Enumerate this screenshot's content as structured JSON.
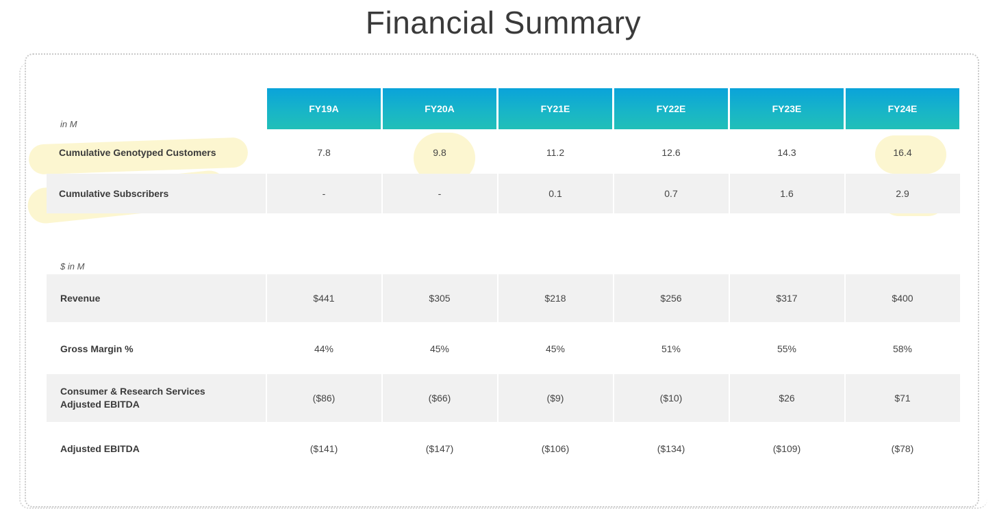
{
  "title": "Financial Summary",
  "section1": {
    "unit": "in M",
    "columns": [
      "FY19A",
      "FY20A",
      "FY21E",
      "FY22E",
      "FY23E",
      "FY24E"
    ],
    "rows": [
      {
        "label": "Cumulative Genotyped Customers",
        "values": [
          "7.8",
          "9.8",
          "11.2",
          "12.6",
          "14.3",
          "16.4"
        ]
      },
      {
        "label": "Cumulative Subscribers",
        "values": [
          "-",
          "-",
          "0.1",
          "0.7",
          "1.6",
          "2.9"
        ]
      }
    ]
  },
  "section2": {
    "unit": "$ in M",
    "rows": [
      {
        "label": "Revenue",
        "values": [
          "$441",
          "$305",
          "$218",
          "$256",
          "$317",
          "$400"
        ]
      },
      {
        "label": "Gross Margin %",
        "values": [
          "44%",
          "45%",
          "45%",
          "51%",
          "55%",
          "58%"
        ]
      },
      {
        "label": "Consumer & Research Services Adjusted EBITDA",
        "values": [
          "($86)",
          "($66)",
          "($9)",
          "($10)",
          "$26",
          "$71"
        ]
      },
      {
        "label": "Adjusted EBITDA",
        "values": [
          "($141)",
          "($147)",
          "($106)",
          "($134)",
          "($109)",
          "($78)"
        ]
      }
    ]
  },
  "colors": {
    "header_gradient_top": "#0aa3da",
    "header_gradient_bottom": "#21bfb8",
    "highlight": "#faeeaa",
    "row_shade": "#f1f1f1"
  }
}
